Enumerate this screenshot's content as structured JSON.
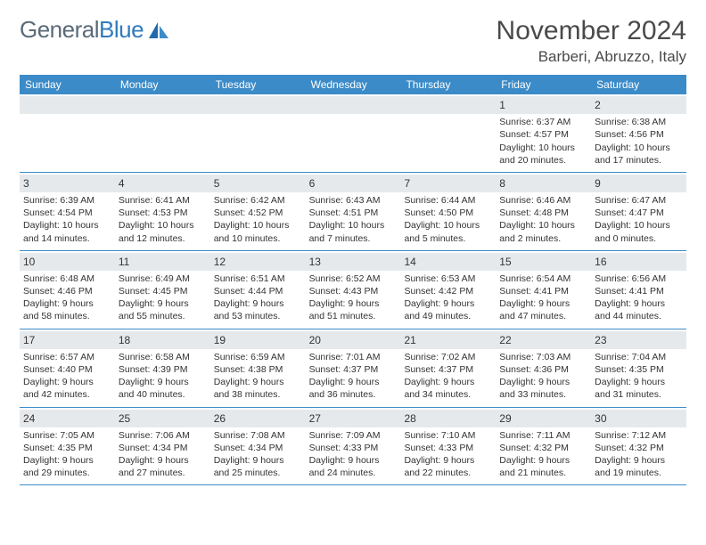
{
  "logo": {
    "part1": "General",
    "part2": "Blue"
  },
  "title": "November 2024",
  "location": "Barberi, Abruzzo, Italy",
  "dayNames": [
    "Sunday",
    "Monday",
    "Tuesday",
    "Wednesday",
    "Thursday",
    "Friday",
    "Saturday"
  ],
  "colors": {
    "headerBg": "#3b8bc8",
    "dayNumBg": "#e6e9ec",
    "border": "#3b8bc8",
    "logoGray": "#5a6a78",
    "logoBlue": "#2f7bbf"
  },
  "weeks": [
    [
      {
        "day": "",
        "lines": []
      },
      {
        "day": "",
        "lines": []
      },
      {
        "day": "",
        "lines": []
      },
      {
        "day": "",
        "lines": []
      },
      {
        "day": "",
        "lines": []
      },
      {
        "day": "1",
        "lines": [
          "Sunrise: 6:37 AM",
          "Sunset: 4:57 PM",
          "Daylight: 10 hours and 20 minutes."
        ]
      },
      {
        "day": "2",
        "lines": [
          "Sunrise: 6:38 AM",
          "Sunset: 4:56 PM",
          "Daylight: 10 hours and 17 minutes."
        ]
      }
    ],
    [
      {
        "day": "3",
        "lines": [
          "Sunrise: 6:39 AM",
          "Sunset: 4:54 PM",
          "Daylight: 10 hours and 14 minutes."
        ]
      },
      {
        "day": "4",
        "lines": [
          "Sunrise: 6:41 AM",
          "Sunset: 4:53 PM",
          "Daylight: 10 hours and 12 minutes."
        ]
      },
      {
        "day": "5",
        "lines": [
          "Sunrise: 6:42 AM",
          "Sunset: 4:52 PM",
          "Daylight: 10 hours and 10 minutes."
        ]
      },
      {
        "day": "6",
        "lines": [
          "Sunrise: 6:43 AM",
          "Sunset: 4:51 PM",
          "Daylight: 10 hours and 7 minutes."
        ]
      },
      {
        "day": "7",
        "lines": [
          "Sunrise: 6:44 AM",
          "Sunset: 4:50 PM",
          "Daylight: 10 hours and 5 minutes."
        ]
      },
      {
        "day": "8",
        "lines": [
          "Sunrise: 6:46 AM",
          "Sunset: 4:48 PM",
          "Daylight: 10 hours and 2 minutes."
        ]
      },
      {
        "day": "9",
        "lines": [
          "Sunrise: 6:47 AM",
          "Sunset: 4:47 PM",
          "Daylight: 10 hours and 0 minutes."
        ]
      }
    ],
    [
      {
        "day": "10",
        "lines": [
          "Sunrise: 6:48 AM",
          "Sunset: 4:46 PM",
          "Daylight: 9 hours and 58 minutes."
        ]
      },
      {
        "day": "11",
        "lines": [
          "Sunrise: 6:49 AM",
          "Sunset: 4:45 PM",
          "Daylight: 9 hours and 55 minutes."
        ]
      },
      {
        "day": "12",
        "lines": [
          "Sunrise: 6:51 AM",
          "Sunset: 4:44 PM",
          "Daylight: 9 hours and 53 minutes."
        ]
      },
      {
        "day": "13",
        "lines": [
          "Sunrise: 6:52 AM",
          "Sunset: 4:43 PM",
          "Daylight: 9 hours and 51 minutes."
        ]
      },
      {
        "day": "14",
        "lines": [
          "Sunrise: 6:53 AM",
          "Sunset: 4:42 PM",
          "Daylight: 9 hours and 49 minutes."
        ]
      },
      {
        "day": "15",
        "lines": [
          "Sunrise: 6:54 AM",
          "Sunset: 4:41 PM",
          "Daylight: 9 hours and 47 minutes."
        ]
      },
      {
        "day": "16",
        "lines": [
          "Sunrise: 6:56 AM",
          "Sunset: 4:41 PM",
          "Daylight: 9 hours and 44 minutes."
        ]
      }
    ],
    [
      {
        "day": "17",
        "lines": [
          "Sunrise: 6:57 AM",
          "Sunset: 4:40 PM",
          "Daylight: 9 hours and 42 minutes."
        ]
      },
      {
        "day": "18",
        "lines": [
          "Sunrise: 6:58 AM",
          "Sunset: 4:39 PM",
          "Daylight: 9 hours and 40 minutes."
        ]
      },
      {
        "day": "19",
        "lines": [
          "Sunrise: 6:59 AM",
          "Sunset: 4:38 PM",
          "Daylight: 9 hours and 38 minutes."
        ]
      },
      {
        "day": "20",
        "lines": [
          "Sunrise: 7:01 AM",
          "Sunset: 4:37 PM",
          "Daylight: 9 hours and 36 minutes."
        ]
      },
      {
        "day": "21",
        "lines": [
          "Sunrise: 7:02 AM",
          "Sunset: 4:37 PM",
          "Daylight: 9 hours and 34 minutes."
        ]
      },
      {
        "day": "22",
        "lines": [
          "Sunrise: 7:03 AM",
          "Sunset: 4:36 PM",
          "Daylight: 9 hours and 33 minutes."
        ]
      },
      {
        "day": "23",
        "lines": [
          "Sunrise: 7:04 AM",
          "Sunset: 4:35 PM",
          "Daylight: 9 hours and 31 minutes."
        ]
      }
    ],
    [
      {
        "day": "24",
        "lines": [
          "Sunrise: 7:05 AM",
          "Sunset: 4:35 PM",
          "Daylight: 9 hours and 29 minutes."
        ]
      },
      {
        "day": "25",
        "lines": [
          "Sunrise: 7:06 AM",
          "Sunset: 4:34 PM",
          "Daylight: 9 hours and 27 minutes."
        ]
      },
      {
        "day": "26",
        "lines": [
          "Sunrise: 7:08 AM",
          "Sunset: 4:34 PM",
          "Daylight: 9 hours and 25 minutes."
        ]
      },
      {
        "day": "27",
        "lines": [
          "Sunrise: 7:09 AM",
          "Sunset: 4:33 PM",
          "Daylight: 9 hours and 24 minutes."
        ]
      },
      {
        "day": "28",
        "lines": [
          "Sunrise: 7:10 AM",
          "Sunset: 4:33 PM",
          "Daylight: 9 hours and 22 minutes."
        ]
      },
      {
        "day": "29",
        "lines": [
          "Sunrise: 7:11 AM",
          "Sunset: 4:32 PM",
          "Daylight: 9 hours and 21 minutes."
        ]
      },
      {
        "day": "30",
        "lines": [
          "Sunrise: 7:12 AM",
          "Sunset: 4:32 PM",
          "Daylight: 9 hours and 19 minutes."
        ]
      }
    ]
  ]
}
